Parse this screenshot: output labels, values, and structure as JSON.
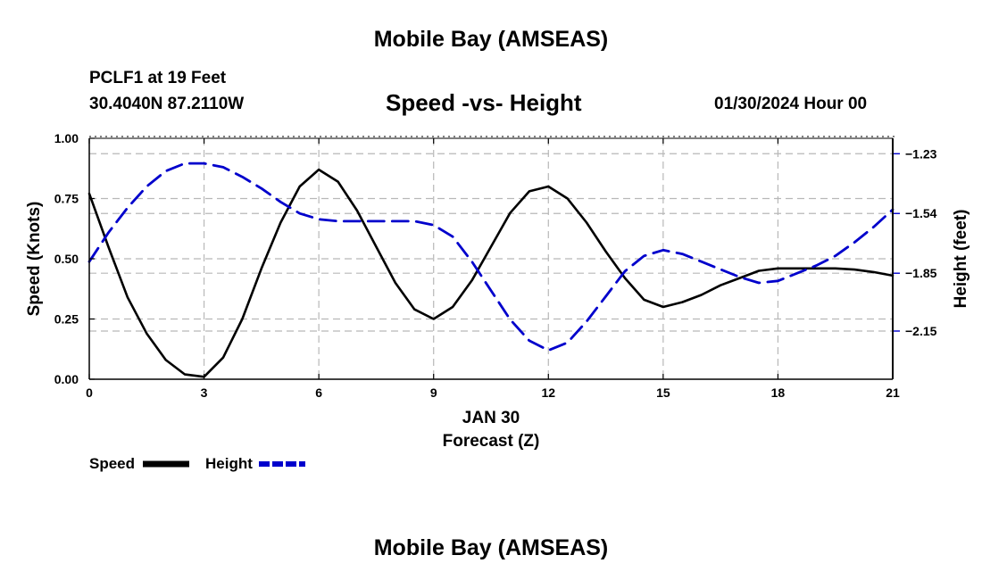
{
  "header": {
    "title": "Mobile Bay (AMSEAS)",
    "station": "PCLF1 at 19 Feet",
    "coords": "30.4040N  87.2110W",
    "subtitle": "Speed -vs- Height",
    "datetime": "01/30/2024 Hour 00"
  },
  "footer": {
    "title": "Mobile Bay (AMSEAS)"
  },
  "chart_data": {
    "type": "line",
    "title": "Speed -vs- Height",
    "xlabel_top": "JAN 30",
    "xlabel": "Forecast (Z)",
    "ylabel": "Speed (Knots)",
    "y2label": "Height (feet)",
    "xlim": [
      0,
      21
    ],
    "ylim": [
      0,
      1.0
    ],
    "y2lim": [
      -2.4,
      -1.15
    ],
    "x_ticks": [
      "0",
      "3",
      "6",
      "9",
      "12",
      "15",
      "18",
      "21"
    ],
    "y_ticks": [
      "0.00",
      "0.25",
      "0.50",
      "0.75",
      "1.00"
    ],
    "y2_ticks": [
      {
        "label": "−2.15",
        "value": -2.15
      },
      {
        "label": "−1.85",
        "value": -1.85
      },
      {
        "label": "−1.54",
        "value": -1.54
      },
      {
        "label": "−1.23",
        "value": -1.23
      }
    ],
    "grid": true,
    "legend_placement": "bottom-left",
    "series": [
      {
        "name": "Speed",
        "axis": "left",
        "color": "#000000",
        "style": "solid",
        "x": [
          0,
          0.5,
          1,
          1.5,
          2,
          2.5,
          3,
          3.5,
          4,
          4.5,
          5,
          5.5,
          6,
          6.5,
          7,
          7.5,
          8,
          8.5,
          9,
          9.5,
          10,
          10.5,
          11,
          11.5,
          12,
          12.5,
          13,
          13.5,
          14,
          14.5,
          15,
          15.5,
          16,
          16.5,
          17,
          17.5,
          18,
          18.5,
          19,
          19.5,
          20,
          20.5,
          21
        ],
        "y": [
          0.77,
          0.55,
          0.34,
          0.19,
          0.08,
          0.02,
          0.01,
          0.09,
          0.25,
          0.46,
          0.65,
          0.8,
          0.87,
          0.82,
          0.7,
          0.55,
          0.4,
          0.29,
          0.25,
          0.3,
          0.41,
          0.55,
          0.69,
          0.78,
          0.8,
          0.75,
          0.65,
          0.53,
          0.42,
          0.33,
          0.3,
          0.32,
          0.35,
          0.39,
          0.42,
          0.45,
          0.46,
          0.46,
          0.46,
          0.46,
          0.455,
          0.445,
          0.43
        ]
      },
      {
        "name": "Height",
        "axis": "right",
        "color": "#0000cc",
        "style": "dashed",
        "x": [
          0,
          0.5,
          1,
          1.5,
          2,
          2.5,
          3,
          3.5,
          4,
          4.5,
          5,
          5.5,
          6,
          6.5,
          7,
          7.5,
          8,
          8.5,
          9,
          9.5,
          10,
          10.5,
          11,
          11.5,
          12,
          12.5,
          13,
          13.5,
          14,
          14.5,
          15,
          15.5,
          16,
          16.5,
          17,
          17.5,
          18,
          18.5,
          19,
          19.5,
          20,
          20.5,
          21
        ],
        "y": [
          -1.79,
          -1.64,
          -1.51,
          -1.4,
          -1.32,
          -1.28,
          -1.28,
          -1.3,
          -1.35,
          -1.41,
          -1.48,
          -1.54,
          -1.57,
          -1.58,
          -1.58,
          -1.58,
          -1.58,
          -1.58,
          -1.6,
          -1.66,
          -1.79,
          -1.94,
          -2.09,
          -2.2,
          -2.25,
          -2.21,
          -2.1,
          -1.97,
          -1.84,
          -1.76,
          -1.73,
          -1.75,
          -1.79,
          -1.83,
          -1.87,
          -1.9,
          -1.89,
          -1.85,
          -1.81,
          -1.76,
          -1.69,
          -1.61,
          -1.52
        ]
      }
    ]
  }
}
